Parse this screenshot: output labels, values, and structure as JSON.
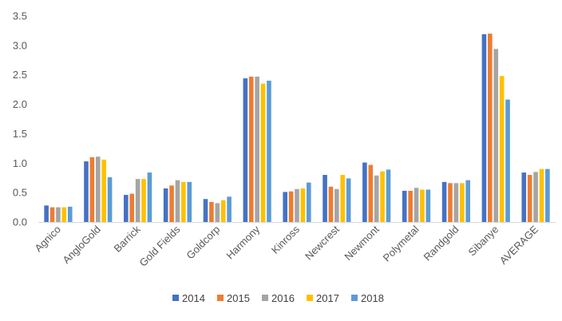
{
  "chart_data": {
    "type": "bar",
    "title": "",
    "xlabel": "",
    "ylabel": "",
    "ylim": [
      0,
      3.5
    ],
    "yticks": [
      "0.0",
      "0.5",
      "1.0",
      "1.5",
      "2.0",
      "2.5",
      "3.0",
      "3.5"
    ],
    "grid": false,
    "legend_position": "bottom",
    "categories": [
      "Agnico",
      "AngloGold",
      "Barrick",
      "Gold Fields",
      "Goldcorp",
      "Harmony",
      "Kinross",
      "Newcrest",
      "Newmont",
      "Polymetal",
      "Randgold",
      "Sibanye",
      "AVERAGE"
    ],
    "series": [
      {
        "name": "2014",
        "color": "#4472c4",
        "values": [
          0.28,
          1.03,
          0.46,
          0.57,
          0.39,
          2.44,
          0.51,
          0.8,
          1.01,
          0.53,
          0.68,
          3.19,
          0.84
        ]
      },
      {
        "name": "2015",
        "color": "#ed7d31",
        "values": [
          0.25,
          1.1,
          0.48,
          0.62,
          0.34,
          2.47,
          0.52,
          0.6,
          0.97,
          0.53,
          0.66,
          3.2,
          0.8
        ]
      },
      {
        "name": "2016",
        "color": "#a5a5a5",
        "values": [
          0.25,
          1.11,
          0.73,
          0.71,
          0.32,
          2.47,
          0.56,
          0.56,
          0.79,
          0.58,
          0.66,
          2.94,
          0.85
        ]
      },
      {
        "name": "2017",
        "color": "#ffc000",
        "values": [
          0.25,
          1.06,
          0.73,
          0.68,
          0.37,
          2.35,
          0.57,
          0.8,
          0.86,
          0.55,
          0.66,
          2.48,
          0.9
        ]
      },
      {
        "name": "2018",
        "color": "#5b9bd5",
        "values": [
          0.26,
          0.76,
          0.84,
          0.68,
          0.43,
          2.4,
          0.67,
          0.74,
          0.89,
          0.55,
          0.71,
          2.08,
          0.9
        ]
      }
    ]
  }
}
